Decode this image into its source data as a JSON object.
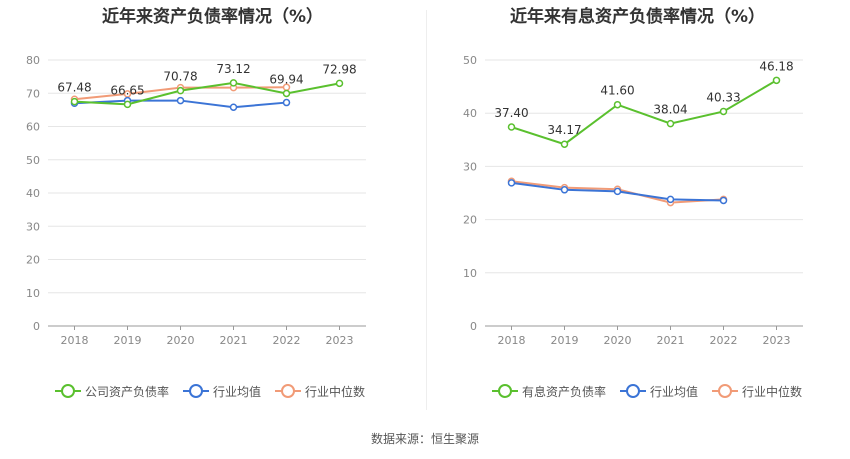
{
  "colors": {
    "primary": "#5ac02e",
    "industry_avg": "#3b74d6",
    "industry_median": "#f19b77",
    "grid": "#e6e6e6",
    "axis_text": "#888888",
    "label_text": "#333333"
  },
  "source_label": "数据来源：恒生聚源",
  "chart_data": [
    {
      "type": "line",
      "title": "近年来资产负债率情况（%）",
      "categories": [
        "2018",
        "2019",
        "2020",
        "2021",
        "2022",
        "2023"
      ],
      "ylim": [
        0,
        80
      ],
      "yticks": [
        0,
        10,
        20,
        30,
        40,
        50,
        60,
        70,
        80
      ],
      "grid": true,
      "legend_position": "bottom",
      "series": [
        {
          "name": "公司资产负债率",
          "color_key": "primary",
          "labeled": true,
          "values": [
            67.48,
            66.65,
            70.78,
            73.12,
            69.94,
            72.98
          ]
        },
        {
          "name": "行业均值",
          "color_key": "industry_avg",
          "labeled": false,
          "values": [
            67.0,
            67.8,
            67.8,
            65.8,
            67.2,
            null
          ]
        },
        {
          "name": "行业中位数",
          "color_key": "industry_median",
          "labeled": false,
          "values": [
            68.2,
            69.8,
            71.7,
            71.7,
            71.8,
            null
          ]
        }
      ]
    },
    {
      "type": "line",
      "title": "近年来有息资产负债率情况（%）",
      "categories": [
        "2018",
        "2019",
        "2020",
        "2021",
        "2022",
        "2023"
      ],
      "ylim": [
        0,
        50
      ],
      "yticks": [
        0,
        10,
        20,
        30,
        40,
        50
      ],
      "grid": true,
      "legend_position": "bottom",
      "series": [
        {
          "name": "有息资产负债率",
          "color_key": "primary",
          "labeled": true,
          "values": [
            37.4,
            34.17,
            41.6,
            38.04,
            40.33,
            46.18
          ]
        },
        {
          "name": "行业均值",
          "color_key": "industry_avg",
          "labeled": false,
          "values": [
            26.9,
            25.6,
            25.3,
            23.8,
            23.6,
            null
          ]
        },
        {
          "name": "行业中位数",
          "color_key": "industry_median",
          "labeled": false,
          "values": [
            27.2,
            26.0,
            25.7,
            23.2,
            23.8,
            null
          ]
        }
      ]
    }
  ]
}
